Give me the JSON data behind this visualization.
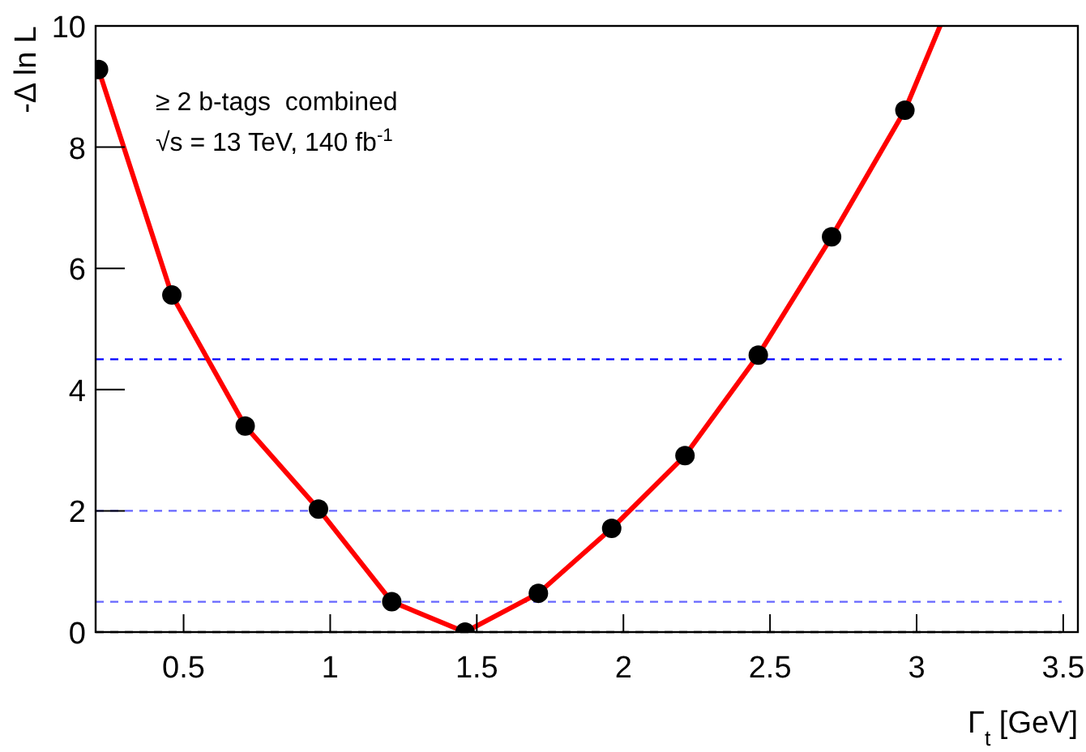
{
  "chart_data": {
    "type": "line",
    "xlabel": "Γ$_{t}$ [GeV]",
    "ylabel": "-Δ ln L",
    "annotations": [
      "≥ 2 b-tags  combined",
      "√s = 13 TeV, 140 fb$^{-1}$"
    ],
    "xlim": [
      0.2,
      3.55
    ],
    "xticks": [
      0.5,
      1,
      1.5,
      2,
      2.5,
      3,
      3.5
    ],
    "ylim": [
      0,
      10
    ],
    "yticks": [
      0,
      2,
      4,
      6,
      8,
      10
    ],
    "grid": false,
    "series": [
      {
        "color": "#ff0000",
        "marker": "none",
        "line_style": "solid",
        "x": [
          0.21,
          0.46,
          0.71,
          0.96,
          1.21,
          1.46,
          1.71,
          1.96,
          2.21,
          2.46,
          2.71,
          2.96,
          3.08
        ],
        "values": [
          9.28,
          5.56,
          3.4,
          2.03,
          0.5,
          0,
          0.64,
          1.71,
          2.91,
          4.57,
          6.52,
          8.61,
          10
        ]
      },
      {
        "type": "scatter",
        "color": "#000000",
        "marker": "circle",
        "x": [
          0.21,
          0.46,
          0.71,
          0.96,
          1.21,
          1.46,
          1.71,
          1.96,
          2.21,
          2.46,
          2.71,
          2.96
        ],
        "values": [
          9.28,
          5.56,
          3.4,
          2.03,
          0.5,
          0,
          0.64,
          1.71,
          2.91,
          4.57,
          6.52,
          8.61
        ]
      }
    ],
    "ref_lines": [
      {
        "axis": "y",
        "value": 0,
        "color": "#000000",
        "line_style": "dashed"
      },
      {
        "axis": "y",
        "value": 0.5,
        "color": "#6666ff",
        "line_style": "dashed"
      },
      {
        "axis": "y",
        "value": 2,
        "color": "#6666ff",
        "line_style": "dashed"
      },
      {
        "axis": "y",
        "value": 4.5,
        "color": "#0000ff",
        "line_style": "dashed"
      }
    ]
  }
}
